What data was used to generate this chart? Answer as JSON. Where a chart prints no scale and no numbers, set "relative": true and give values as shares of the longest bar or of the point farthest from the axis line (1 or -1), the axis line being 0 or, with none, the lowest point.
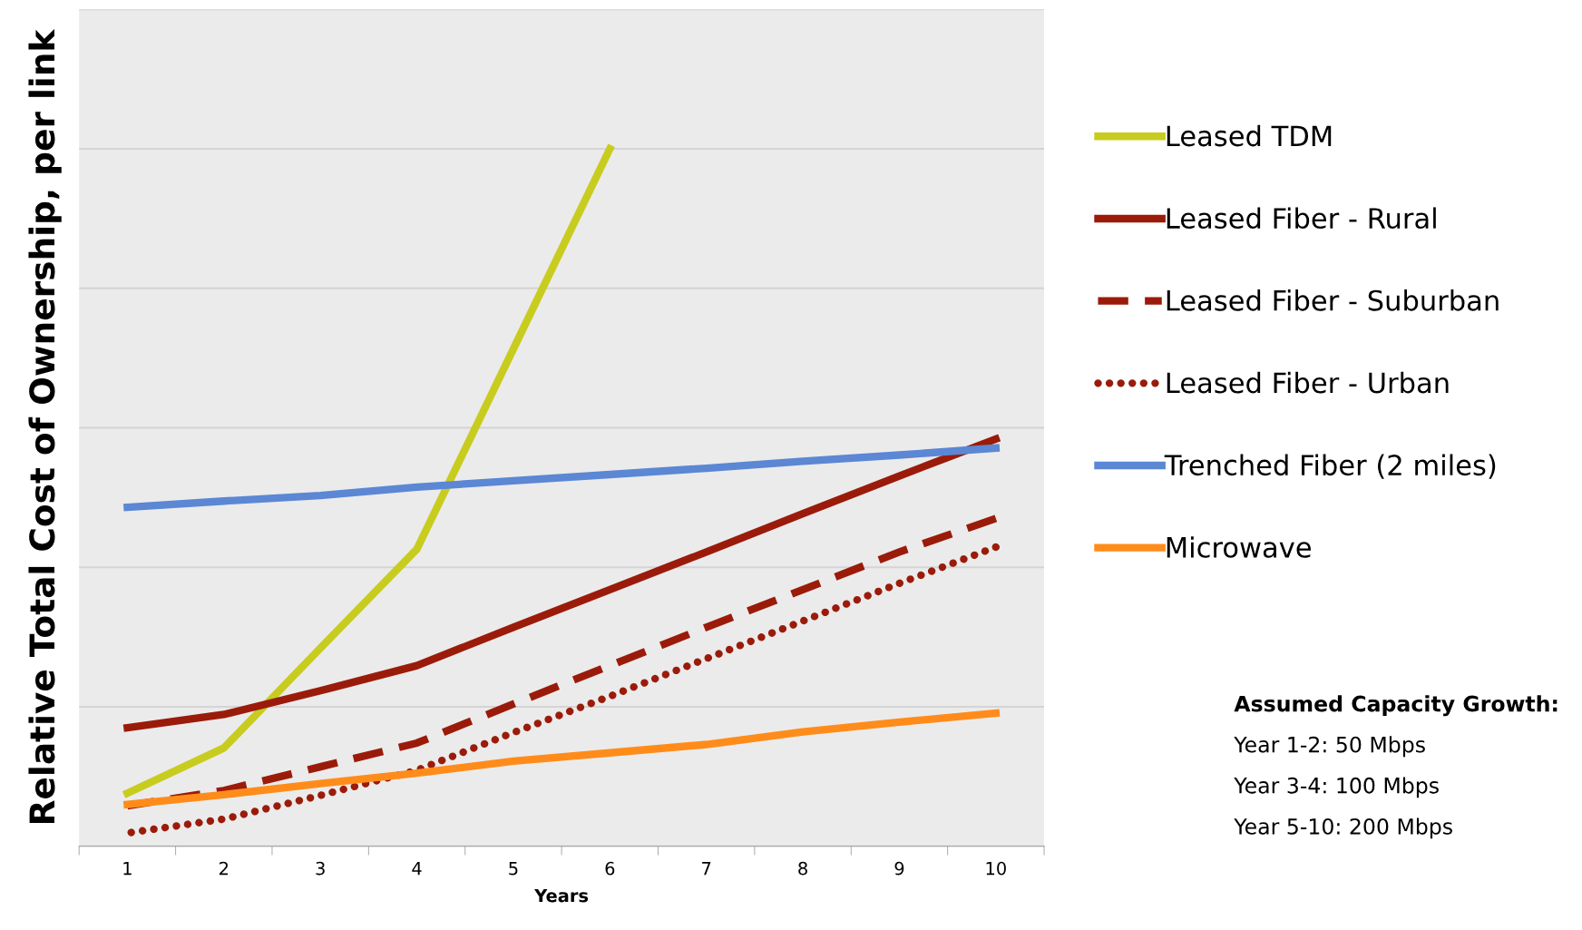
{
  "chart_data": {
    "type": "line",
    "relative": true,
    "xlabel": "Years",
    "ylabel": "Relative Total Cost of Ownership, per link",
    "categories": [
      "1",
      "2",
      "3",
      "4",
      "5",
      "6",
      "7",
      "8",
      "9",
      "10"
    ],
    "grid": "y",
    "legend": "right",
    "marker": "none",
    "series": [
      {
        "name": "Leased TDM",
        "color": "#c8cc1e",
        "line_style": "solid",
        "values": [
          0.076,
          0.141,
          0.284,
          0.426,
          0.713,
          1,
          null,
          null,
          null,
          null
        ]
      },
      {
        "name": "Leased Fiber - Rural",
        "color": "#9b1b0a",
        "line_style": "solid",
        "values": [
          0.17,
          0.189,
          0.223,
          0.259,
          0.314,
          0.368,
          0.422,
          0.477,
          0.531,
          0.584
        ]
      },
      {
        "name": "Leased Fiber - Suburban",
        "color": "#9b1b0a",
        "line_style": "dashed",
        "values": [
          0.058,
          0.08,
          0.114,
          0.148,
          0.204,
          0.259,
          0.314,
          0.368,
          0.422,
          0.47
        ]
      },
      {
        "name": "Leased Fiber - Urban",
        "color": "#9b1b0a",
        "line_style": "dotted",
        "values": [
          0.019,
          0.039,
          0.073,
          0.109,
          0.163,
          0.215,
          0.269,
          0.323,
          0.377,
          0.429
        ]
      },
      {
        "name": "Trenched Fiber (2 miles)",
        "color": "#5b87d4",
        "line_style": "solid",
        "values": [
          0.486,
          0.495,
          0.503,
          0.515,
          0.524,
          0.533,
          0.542,
          0.552,
          0.561,
          0.571
        ]
      },
      {
        "name": "Microwave",
        "color": "#ff8c1a",
        "line_style": "solid",
        "values": [
          0.06,
          0.074,
          0.09,
          0.105,
          0.122,
          0.134,
          0.146,
          0.164,
          0.178,
          0.191
        ]
      }
    ],
    "annotations": [
      "Assumed Capacity Growth:",
      "Year 1-2: 50 Mbps",
      "Year 3-4: 100 Mbps",
      "Year 5-10: 200 Mbps"
    ]
  }
}
